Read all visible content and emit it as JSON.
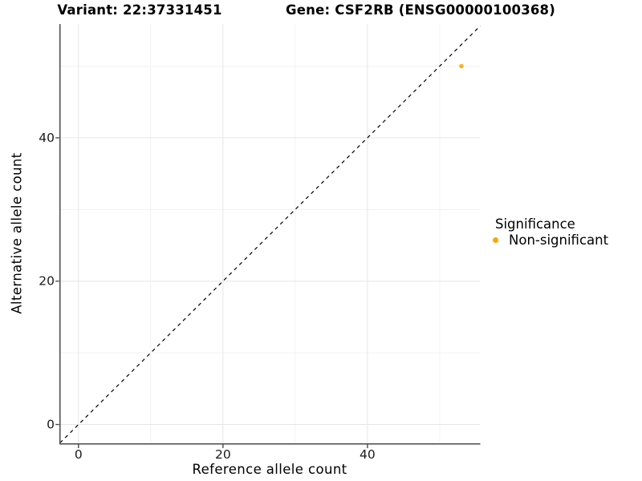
{
  "chart_data": {
    "type": "scatter",
    "titles": [
      "Variant: 22:37331451",
      "Gene: CSF2RB (ENSG00000100368)"
    ],
    "xlabel": "Reference allele count",
    "ylabel": "Alternative allele count",
    "xlim": [
      -2.56,
      55.62
    ],
    "ylim": [
      -2.68,
      55.87
    ],
    "x_ticks": [
      0,
      20,
      40
    ],
    "y_ticks": [
      0,
      20,
      40
    ],
    "x_minor_ticks": [
      10,
      30,
      50
    ],
    "y_minor_ticks": [
      10,
      30,
      50
    ],
    "grid": true,
    "points": [
      {
        "x": 53,
        "y": 50,
        "series": "Non-significant"
      }
    ],
    "identity_line": {
      "style": "dashed",
      "color": "#000000"
    },
    "legend": {
      "title": "Significance",
      "position": "right",
      "items": [
        {
          "label": "Non-significant",
          "color": "#FFA500",
          "marker": "circle"
        }
      ]
    },
    "colors": {
      "point": "#FFA500",
      "grid_major": "#e6e6e6",
      "grid_minor": "#f2f2f2",
      "axis_line": "#4a4a4a",
      "tick_label": "#1a1a1a",
      "text": "#000000"
    }
  }
}
